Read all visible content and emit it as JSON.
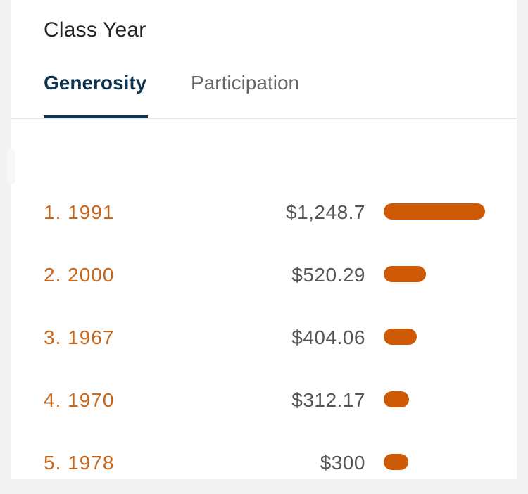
{
  "header": {
    "title": "Class Year"
  },
  "tabs": [
    {
      "label": "Generosity",
      "active": true
    },
    {
      "label": "Participation",
      "active": false
    }
  ],
  "colors": {
    "accent": "#cf5a06",
    "rank_text": "#c8661a",
    "active_tab": "#0f3550"
  },
  "rankings": [
    {
      "rank": "1. 1991",
      "amount": "$1,248.7",
      "value": 1248.7
    },
    {
      "rank": "2. 2000",
      "amount": "$520.29",
      "value": 520.29
    },
    {
      "rank": "3. 1967",
      "amount": "$404.06",
      "value": 404.06
    },
    {
      "rank": "4. 1970",
      "amount": "$312.17",
      "value": 312.17
    },
    {
      "rank": "5. 1978",
      "amount": "$300",
      "value": 300
    }
  ]
}
